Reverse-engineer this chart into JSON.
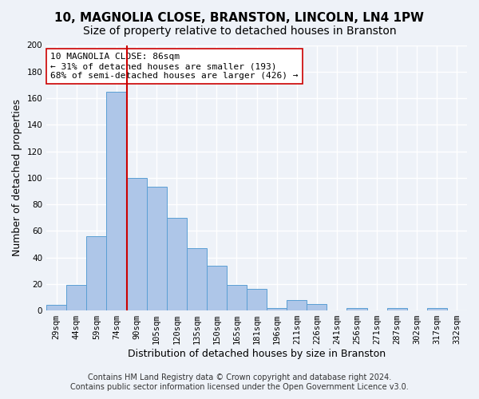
{
  "title": "10, MAGNOLIA CLOSE, BRANSTON, LINCOLN, LN4 1PW",
  "subtitle": "Size of property relative to detached houses in Branston",
  "xlabel": "Distribution of detached houses by size in Branston",
  "ylabel": "Number of detached properties",
  "bin_labels": [
    "29sqm",
    "44sqm",
    "59sqm",
    "74sqm",
    "90sqm",
    "105sqm",
    "120sqm",
    "135sqm",
    "150sqm",
    "165sqm",
    "181sqm",
    "196sqm",
    "211sqm",
    "226sqm",
    "241sqm",
    "256sqm",
    "271sqm",
    "287sqm",
    "302sqm",
    "317sqm",
    "332sqm"
  ],
  "bar_heights": [
    4,
    19,
    56,
    165,
    100,
    93,
    70,
    47,
    34,
    19,
    16,
    2,
    8,
    5,
    0,
    2,
    0,
    2,
    0,
    2,
    0
  ],
  "bar_color": "#aec6e8",
  "bar_edge_color": "#5a9fd4",
  "vline_x": 3.5,
  "vline_color": "#cc0000",
  "annotation_text": "10 MAGNOLIA CLOSE: 86sqm\n← 31% of detached houses are smaller (193)\n68% of semi-detached houses are larger (426) →",
  "annotation_box_color": "#ffffff",
  "annotation_box_edge_color": "#cc0000",
  "ylim": [
    0,
    200
  ],
  "yticks": [
    0,
    20,
    40,
    60,
    80,
    100,
    120,
    140,
    160,
    180,
    200
  ],
  "footer_line1": "Contains HM Land Registry data © Crown copyright and database right 2024.",
  "footer_line2": "Contains public sector information licensed under the Open Government Licence v3.0.",
  "bg_color": "#eef2f8",
  "grid_color": "#ffffff",
  "title_fontsize": 11,
  "subtitle_fontsize": 10,
  "axis_label_fontsize": 9,
  "tick_fontsize": 7.5,
  "footer_fontsize": 7
}
